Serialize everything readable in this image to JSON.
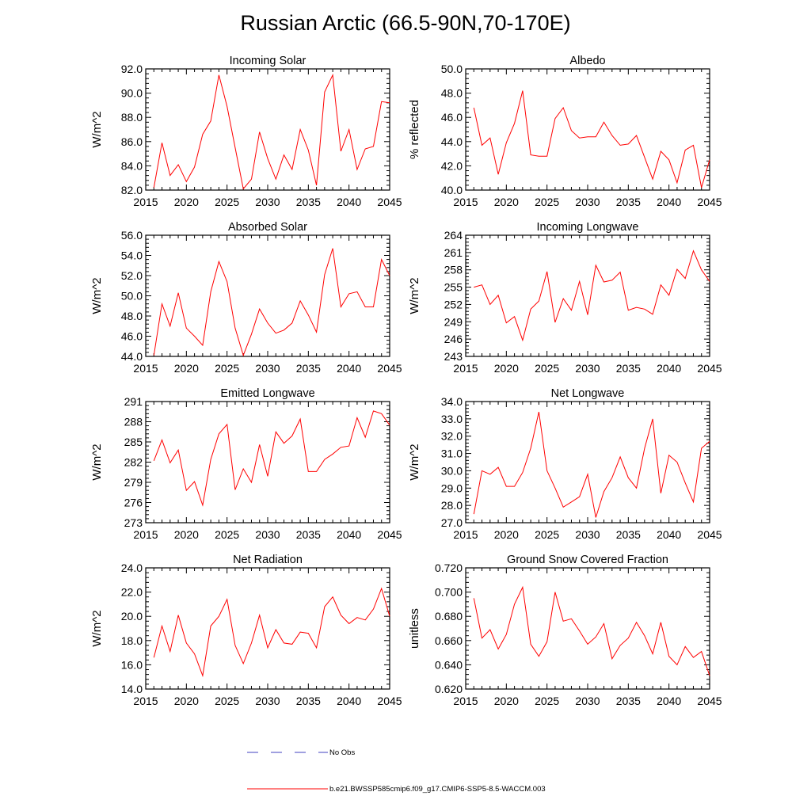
{
  "title": "Russian Arctic (66.5-90N,70-170E)",
  "colors": {
    "model_line": "#ff0000",
    "obs_line": "#4040c0",
    "axis": "#000000"
  },
  "legend": {
    "obs_label": "No Obs",
    "model_label": "b.e21.BWSSP585cmip6.f09_g17.CMIP6-SSP5-8.5-WACCM.003"
  },
  "chart_data": [
    {
      "type": "line",
      "title": "Incoming Solar",
      "ylabel": "W/m^2",
      "xlim": [
        2015,
        2045
      ],
      "ylim": [
        82.0,
        92.0
      ],
      "xticks": [
        2015,
        2020,
        2025,
        2030,
        2035,
        2040,
        2045
      ],
      "xticklabels": [
        "2015",
        "2020",
        "2025",
        "2030",
        "2035",
        "2040",
        "2045"
      ],
      "yticks": [
        82,
        84,
        86,
        88,
        90,
        92
      ],
      "yticklabels": [
        "82.0",
        "84.0",
        "86.0",
        "88.0",
        "90.0",
        "92.0"
      ],
      "series": [
        {
          "name": "b.e21.BWSSP585cmip6.f09_g17.CMIP6-SSP5-8.5-WACCM.003",
          "x": [
            2016,
            2017,
            2018,
            2019,
            2020,
            2021,
            2022,
            2023,
            2024,
            2025,
            2026,
            2027,
            2028,
            2029,
            2030,
            2031,
            2032,
            2033,
            2034,
            2035,
            2036,
            2037,
            2038,
            2039,
            2040,
            2041,
            2042,
            2043,
            2044,
            2045
          ],
          "y": [
            82.2,
            85.9,
            83.2,
            84.1,
            82.7,
            83.9,
            86.6,
            87.7,
            91.5,
            88.9,
            85.5,
            82.1,
            82.9,
            86.8,
            84.6,
            82.9,
            84.9,
            83.7,
            87.0,
            85.3,
            82.4,
            90.1,
            91.5,
            85.2,
            87.0,
            83.7,
            85.4,
            85.6,
            89.3,
            89.2
          ]
        }
      ]
    },
    {
      "type": "line",
      "title": "Albedo",
      "ylabel": "% reflected",
      "xlim": [
        2015,
        2045
      ],
      "ylim": [
        40.0,
        50.0
      ],
      "xticks": [
        2015,
        2020,
        2025,
        2030,
        2035,
        2040,
        2045
      ],
      "xticklabels": [
        "2015",
        "2020",
        "2025",
        "2030",
        "2035",
        "2040",
        "2045"
      ],
      "yticks": [
        40,
        42,
        44,
        46,
        48,
        50
      ],
      "yticklabels": [
        "40.0",
        "42.0",
        "44.0",
        "46.0",
        "48.0",
        "50.0"
      ],
      "series": [
        {
          "name": "b.e21.BWSSP585cmip6.f09_g17.CMIP6-SSP5-8.5-WACCM.003",
          "x": [
            2016,
            2017,
            2018,
            2019,
            2020,
            2021,
            2022,
            2023,
            2024,
            2025,
            2026,
            2027,
            2028,
            2029,
            2030,
            2031,
            2032,
            2033,
            2034,
            2035,
            2036,
            2037,
            2038,
            2039,
            2040,
            2041,
            2042,
            2043,
            2044,
            2045
          ],
          "y": [
            46.8,
            43.7,
            44.3,
            41.3,
            43.9,
            45.5,
            48.2,
            42.9,
            42.8,
            42.8,
            45.9,
            46.8,
            44.9,
            44.3,
            44.4,
            44.4,
            45.6,
            44.5,
            43.7,
            43.8,
            44.5,
            42.7,
            40.9,
            43.2,
            42.5,
            40.6,
            43.3,
            43.7,
            40.2,
            42.5
          ]
        }
      ]
    },
    {
      "type": "line",
      "title": "Absorbed Solar",
      "ylabel": "W/m^2",
      "xlim": [
        2015,
        2045
      ],
      "ylim": [
        44.0,
        56.0
      ],
      "xticks": [
        2015,
        2020,
        2025,
        2030,
        2035,
        2040,
        2045
      ],
      "xticklabels": [
        "2015",
        "2020",
        "2025",
        "2030",
        "2035",
        "2040",
        "2045"
      ],
      "yticks": [
        44,
        46,
        48,
        50,
        52,
        54,
        56
      ],
      "yticklabels": [
        "44.0",
        "46.0",
        "48.0",
        "50.0",
        "52.0",
        "54.0",
        "56.0"
      ],
      "series": [
        {
          "name": "b.e21.BWSSP585cmip6.f09_g17.CMIP6-SSP5-8.5-WACCM.003",
          "x": [
            2016,
            2017,
            2018,
            2019,
            2020,
            2021,
            2022,
            2023,
            2024,
            2025,
            2026,
            2027,
            2028,
            2029,
            2030,
            2031,
            2032,
            2033,
            2034,
            2035,
            2036,
            2037,
            2038,
            2039,
            2040,
            2041,
            2042,
            2043,
            2044,
            2045
          ],
          "y": [
            44.1,
            49.2,
            47.0,
            50.3,
            46.8,
            46.0,
            45.1,
            50.4,
            53.4,
            51.4,
            46.8,
            44.1,
            46.2,
            48.7,
            47.3,
            46.3,
            46.6,
            47.3,
            49.5,
            48.1,
            46.4,
            52.1,
            54.7,
            48.9,
            50.2,
            50.4,
            48.9,
            48.9,
            53.6,
            52.0
          ]
        }
      ]
    },
    {
      "type": "line",
      "title": "Incoming Longwave",
      "ylabel": "W/m^2",
      "xlim": [
        2015,
        2045
      ],
      "ylim": [
        243,
        264
      ],
      "xticks": [
        2015,
        2020,
        2025,
        2030,
        2035,
        2040,
        2045
      ],
      "xticklabels": [
        "2015",
        "2020",
        "2025",
        "2030",
        "2035",
        "2040",
        "2045"
      ],
      "yticks": [
        243,
        246,
        249,
        252,
        255,
        258,
        261,
        264
      ],
      "yticklabels": [
        "243",
        "246",
        "249",
        "252",
        "255",
        "258",
        "261",
        "264"
      ],
      "series": [
        {
          "name": "b.e21.BWSSP585cmip6.f09_g17.CMIP6-SSP5-8.5-WACCM.003",
          "x": [
            2016,
            2017,
            2018,
            2019,
            2020,
            2021,
            2022,
            2023,
            2024,
            2025,
            2026,
            2027,
            2028,
            2029,
            2030,
            2031,
            2032,
            2033,
            2034,
            2035,
            2036,
            2037,
            2038,
            2039,
            2040,
            2041,
            2042,
            2043,
            2044,
            2045
          ],
          "y": [
            255.0,
            255.4,
            252.0,
            253.6,
            248.8,
            249.9,
            245.8,
            251.2,
            252.6,
            257.7,
            248.9,
            253.0,
            251.0,
            256.0,
            250.2,
            258.8,
            255.9,
            256.2,
            257.6,
            251.0,
            251.5,
            251.2,
            250.3,
            255.4,
            253.6,
            258.1,
            256.5,
            261.3,
            258.0,
            256.0
          ]
        }
      ]
    },
    {
      "type": "line",
      "title": "Emitted Longwave",
      "ylabel": "W/m^2",
      "xlim": [
        2015,
        2045
      ],
      "ylim": [
        273,
        291
      ],
      "xticks": [
        2015,
        2020,
        2025,
        2030,
        2035,
        2040,
        2045
      ],
      "xticklabels": [
        "2015",
        "2020",
        "2025",
        "2030",
        "2035",
        "2040",
        "2045"
      ],
      "yticks": [
        273,
        276,
        279,
        282,
        285,
        288,
        291
      ],
      "yticklabels": [
        "273",
        "276",
        "279",
        "282",
        "285",
        "288",
        "291"
      ],
      "series": [
        {
          "name": "b.e21.BWSSP585cmip6.f09_g17.CMIP6-SSP5-8.5-WACCM.003",
          "x": [
            2016,
            2017,
            2018,
            2019,
            2020,
            2021,
            2022,
            2023,
            2024,
            2025,
            2026,
            2027,
            2028,
            2029,
            2030,
            2031,
            2032,
            2033,
            2034,
            2035,
            2036,
            2037,
            2038,
            2039,
            2040,
            2041,
            2042,
            2043,
            2044,
            2045
          ],
          "y": [
            282.2,
            285.3,
            281.9,
            283.8,
            277.8,
            279.1,
            275.6,
            282.4,
            286.2,
            287.6,
            277.9,
            281.0,
            279.0,
            284.6,
            279.9,
            286.5,
            284.8,
            285.9,
            288.4,
            280.6,
            280.6,
            282.4,
            283.2,
            284.2,
            284.4,
            288.6,
            285.7,
            289.6,
            289.2,
            287.5
          ]
        }
      ]
    },
    {
      "type": "line",
      "title": "Net Longwave",
      "ylabel": "W/m^2",
      "xlim": [
        2015,
        2045
      ],
      "ylim": [
        27.0,
        34.0
      ],
      "xticks": [
        2015,
        2020,
        2025,
        2030,
        2035,
        2040,
        2045
      ],
      "xticklabels": [
        "2015",
        "2020",
        "2025",
        "2030",
        "2035",
        "2040",
        "2045"
      ],
      "yticks": [
        27,
        28,
        29,
        30,
        31,
        32,
        33,
        34
      ],
      "yticklabels": [
        "27.0",
        "28.0",
        "29.0",
        "30.0",
        "31.0",
        "32.0",
        "33.0",
        "34.0"
      ],
      "series": [
        {
          "name": "b.e21.BWSSP585cmip6.f09_g17.CMIP6-SSP5-8.5-WACCM.003",
          "x": [
            2016,
            2017,
            2018,
            2019,
            2020,
            2021,
            2022,
            2023,
            2024,
            2025,
            2026,
            2027,
            2028,
            2029,
            2030,
            2031,
            2032,
            2033,
            2034,
            2035,
            2036,
            2037,
            2038,
            2039,
            2040,
            2041,
            2042,
            2043,
            2044,
            2045
          ],
          "y": [
            27.5,
            30.0,
            29.8,
            30.2,
            29.1,
            29.1,
            29.9,
            31.3,
            33.4,
            30.0,
            29.0,
            27.9,
            28.2,
            28.5,
            29.8,
            27.3,
            28.8,
            29.6,
            30.8,
            29.6,
            29.0,
            31.3,
            33.0,
            28.7,
            30.9,
            30.5,
            29.3,
            28.2,
            31.3,
            31.7
          ]
        }
      ]
    },
    {
      "type": "line",
      "title": "Net Radiation",
      "ylabel": "W/m^2",
      "xlim": [
        2015,
        2045
      ],
      "ylim": [
        14.0,
        24.0
      ],
      "xticks": [
        2015,
        2020,
        2025,
        2030,
        2035,
        2040,
        2045
      ],
      "xticklabels": [
        "2015",
        "2020",
        "2025",
        "2030",
        "2035",
        "2040",
        "2045"
      ],
      "yticks": [
        14,
        16,
        18,
        20,
        22,
        24
      ],
      "yticklabels": [
        "14.0",
        "16.0",
        "18.0",
        "20.0",
        "22.0",
        "24.0"
      ],
      "series": [
        {
          "name": "b.e21.BWSSP585cmip6.f09_g17.CMIP6-SSP5-8.5-WACCM.003",
          "x": [
            2016,
            2017,
            2018,
            2019,
            2020,
            2021,
            2022,
            2023,
            2024,
            2025,
            2026,
            2027,
            2028,
            2029,
            2030,
            2031,
            2032,
            2033,
            2034,
            2035,
            2036,
            2037,
            2038,
            2039,
            2040,
            2041,
            2042,
            2043,
            2044,
            2045
          ],
          "y": [
            16.6,
            19.2,
            17.1,
            20.1,
            17.8,
            16.9,
            15.1,
            19.2,
            20.0,
            21.4,
            17.6,
            16.1,
            17.8,
            20.1,
            17.4,
            18.9,
            17.8,
            17.7,
            18.7,
            18.6,
            17.4,
            20.8,
            21.6,
            20.1,
            19.4,
            19.9,
            19.7,
            20.6,
            22.3,
            20.0
          ]
        }
      ]
    },
    {
      "type": "line",
      "title": "Ground Snow Covered Fraction",
      "ylabel": "unitless",
      "xlim": [
        2015,
        2045
      ],
      "ylim": [
        0.62,
        0.72
      ],
      "xticks": [
        2015,
        2020,
        2025,
        2030,
        2035,
        2040,
        2045
      ],
      "xticklabels": [
        "2015",
        "2020",
        "2025",
        "2030",
        "2035",
        "2040",
        "2045"
      ],
      "yticks": [
        0.62,
        0.64,
        0.66,
        0.68,
        0.7,
        0.72
      ],
      "yticklabels": [
        "0.620",
        "0.640",
        "0.660",
        "0.680",
        "0.700",
        "0.720"
      ],
      "series": [
        {
          "name": "b.e21.BWSSP585cmip6.f09_g17.CMIP6-SSP5-8.5-WACCM.003",
          "x": [
            2016,
            2017,
            2018,
            2019,
            2020,
            2021,
            2022,
            2023,
            2024,
            2025,
            2026,
            2027,
            2028,
            2029,
            2030,
            2031,
            2032,
            2033,
            2034,
            2035,
            2036,
            2037,
            2038,
            2039,
            2040,
            2041,
            2042,
            2043,
            2044,
            2045
          ],
          "y": [
            0.695,
            0.662,
            0.669,
            0.653,
            0.665,
            0.69,
            0.704,
            0.657,
            0.647,
            0.659,
            0.7,
            0.676,
            0.678,
            0.668,
            0.657,
            0.663,
            0.674,
            0.645,
            0.656,
            0.662,
            0.675,
            0.664,
            0.649,
            0.675,
            0.647,
            0.64,
            0.655,
            0.646,
            0.651,
            0.631
          ]
        }
      ]
    }
  ]
}
